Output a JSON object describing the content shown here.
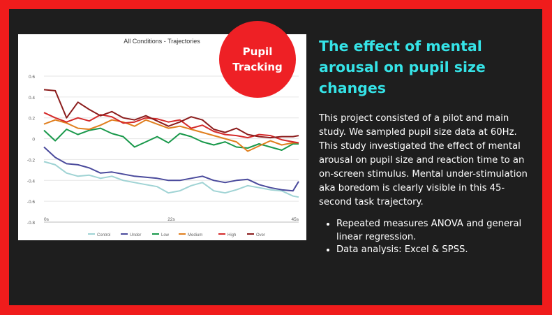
{
  "slide": {
    "badge_line1": "Pupil",
    "badge_line2": "Tracking",
    "headline": "The effect of mental arousal on pupil size changes",
    "description": "This project consisted of a pilot and main study. We sampled pupil size data at 60Hz. This study investigated the effect of mental arousal on pupil size and reaction time to an on-screen stimulus. Mental under-stimulation aka boredom is clearly visible in this 45-second task trajectory.",
    "bullets": [
      "Repeated measures ANOVA and general linear regression.",
      "Data analysis: Excel & SPSS."
    ]
  },
  "colors": {
    "background_border": "#f01c1c",
    "panel": "#1e1e1e",
    "headline": "#35e3e7",
    "badge": "#ee2025",
    "text": "#ffffff"
  },
  "chart_data": {
    "type": "line",
    "title": "All Conditions - Trajectories",
    "xlabel": "",
    "ylabel": "",
    "x_ticks": [
      "0s",
      "22s",
      "45s"
    ],
    "xlim": [
      0,
      45
    ],
    "ylim": [
      -0.8,
      0.6
    ],
    "y_ticks": [
      "0.6",
      "0.4",
      "0.2",
      "0",
      "-0.2",
      "-0.4",
      "-0.6",
      "-0.8"
    ],
    "grid": true,
    "legend_position": "bottom",
    "series": [
      {
        "name": "Control",
        "color": "#9fd3d4",
        "x": [
          0,
          2,
          4,
          6,
          8,
          10,
          12,
          14,
          16,
          18,
          20,
          22,
          24,
          26,
          28,
          30,
          32,
          34,
          36,
          38,
          40,
          42,
          44,
          45
        ],
        "values": [
          -0.22,
          -0.25,
          -0.33,
          -0.36,
          -0.35,
          -0.38,
          -0.36,
          -0.4,
          -0.42,
          -0.44,
          -0.46,
          -0.52,
          -0.5,
          -0.45,
          -0.42,
          -0.5,
          -0.52,
          -0.49,
          -0.45,
          -0.47,
          -0.49,
          -0.5,
          -0.55,
          -0.56
        ]
      },
      {
        "name": "Under",
        "color": "#4a4a9c",
        "x": [
          0,
          2,
          4,
          6,
          8,
          10,
          12,
          14,
          16,
          18,
          20,
          22,
          24,
          26,
          28,
          30,
          32,
          34,
          36,
          38,
          40,
          42,
          44,
          45
        ],
        "values": [
          -0.08,
          -0.18,
          -0.24,
          -0.25,
          -0.28,
          -0.33,
          -0.32,
          -0.34,
          -0.36,
          -0.37,
          -0.38,
          -0.4,
          -0.4,
          -0.38,
          -0.36,
          -0.4,
          -0.42,
          -0.4,
          -0.39,
          -0.44,
          -0.47,
          -0.49,
          -0.5,
          -0.41
        ]
      },
      {
        "name": "Low",
        "color": "#18984a",
        "x": [
          0,
          2,
          4,
          6,
          8,
          10,
          12,
          14,
          16,
          18,
          20,
          22,
          24,
          26,
          28,
          30,
          32,
          34,
          36,
          38,
          40,
          42,
          44,
          45
        ],
        "values": [
          0.08,
          -0.02,
          0.09,
          0.04,
          0.08,
          0.1,
          0.05,
          0.02,
          -0.08,
          -0.03,
          0.02,
          -0.04,
          0.05,
          0.02,
          -0.03,
          -0.06,
          -0.03,
          -0.08,
          -0.09,
          -0.05,
          -0.08,
          -0.11,
          -0.05,
          -0.05
        ]
      },
      {
        "name": "Medium",
        "color": "#e07f1e",
        "x": [
          0,
          2,
          4,
          6,
          8,
          10,
          12,
          14,
          16,
          18,
          20,
          22,
          24,
          26,
          28,
          30,
          32,
          34,
          36,
          38,
          40,
          42,
          44,
          45
        ],
        "values": [
          0.14,
          0.18,
          0.15,
          0.1,
          0.09,
          0.13,
          0.18,
          0.16,
          0.12,
          0.18,
          0.14,
          0.1,
          0.12,
          0.09,
          0.06,
          0.03,
          0.0,
          -0.03,
          -0.12,
          -0.07,
          -0.02,
          -0.06,
          -0.04,
          -0.04
        ]
      },
      {
        "name": "High",
        "color": "#d42a2a",
        "x": [
          0,
          2,
          4,
          6,
          8,
          10,
          12,
          14,
          16,
          18,
          20,
          22,
          24,
          26,
          28,
          30,
          32,
          34,
          36,
          38,
          40,
          42,
          44,
          45
        ],
        "values": [
          0.25,
          0.2,
          0.16,
          0.2,
          0.17,
          0.23,
          0.21,
          0.15,
          0.16,
          0.2,
          0.19,
          0.16,
          0.18,
          0.1,
          0.13,
          0.07,
          0.04,
          0.03,
          0.01,
          0.04,
          0.03,
          -0.01,
          -0.03,
          -0.04
        ]
      },
      {
        "name": "Over",
        "color": "#8b1c1c",
        "x": [
          0,
          2,
          4,
          6,
          8,
          10,
          12,
          14,
          16,
          18,
          20,
          22,
          24,
          26,
          28,
          30,
          32,
          34,
          36,
          38,
          40,
          42,
          44,
          45
        ],
        "values": [
          0.47,
          0.46,
          0.2,
          0.35,
          0.28,
          0.22,
          0.26,
          0.2,
          0.18,
          0.22,
          0.17,
          0.12,
          0.16,
          0.21,
          0.18,
          0.09,
          0.06,
          0.1,
          0.04,
          0.02,
          0.01,
          0.02,
          0.02,
          0.03
        ]
      }
    ]
  }
}
